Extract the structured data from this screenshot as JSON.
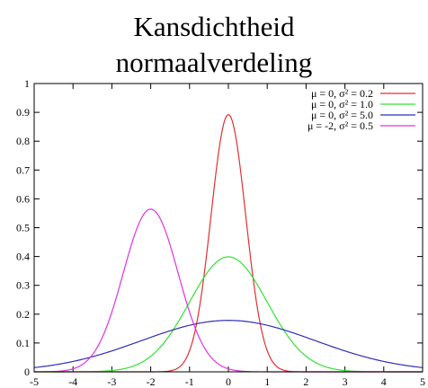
{
  "chart_data": {
    "type": "line",
    "title": "Kansdichtheid",
    "subtitle": "normaalverdeling",
    "xlabel": "",
    "ylabel": "",
    "xlim": [
      -5,
      5
    ],
    "ylim": [
      0,
      1
    ],
    "x_ticks": [
      "-5",
      "-4",
      "-3",
      "-2",
      "-1",
      "0",
      "1",
      "2",
      "3",
      "4",
      "5"
    ],
    "y_ticks": [
      "0",
      "0.1",
      "0.2",
      "0.3",
      "0.4",
      "0.5",
      "0.6",
      "0.7",
      "0.8",
      "0.9",
      "1"
    ],
    "grid": false,
    "legend_position": "top-right",
    "series": [
      {
        "name": "μ = 0, σ² = 0.2",
        "mu": 0,
        "sigma2": 0.2,
        "color": "#e03030"
      },
      {
        "name": "μ = 0, σ² = 1.0",
        "mu": 0,
        "sigma2": 1.0,
        "color": "#33e033"
      },
      {
        "name": "μ = 0, σ² = 5.0",
        "mu": 0,
        "sigma2": 5.0,
        "color": "#2f2fb8"
      },
      {
        "name": "μ = -2, σ² = 0.5",
        "mu": -2,
        "sigma2": 0.5,
        "color": "#e033e0"
      }
    ]
  }
}
